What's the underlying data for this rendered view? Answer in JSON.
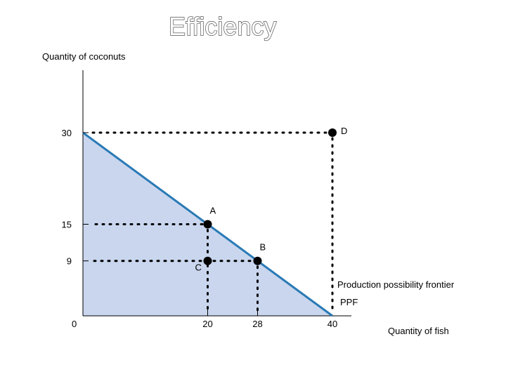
{
  "chart_data": {
    "type": "line",
    "title": "Efficiency",
    "xlabel": "Quantity of fish",
    "ylabel": "Quantity of coconuts",
    "xlim": [
      0,
      40
    ],
    "ylim": [
      0,
      30
    ],
    "grid": false,
    "x_ticks": [
      {
        "value": 0,
        "label": "0"
      },
      {
        "value": 20,
        "label": "20"
      },
      {
        "value": 28,
        "label": "28"
      },
      {
        "value": 40,
        "label": "40"
      }
    ],
    "y_ticks": [
      {
        "value": 9,
        "label": "9"
      },
      {
        "value": 15,
        "label": "15"
      },
      {
        "value": 30,
        "label": "30"
      }
    ],
    "ppf": {
      "x": [
        0,
        40
      ],
      "y": [
        30,
        0
      ],
      "color": "#2a7ab5",
      "fill": "#c9d6ee"
    },
    "points": [
      {
        "label": "A",
        "x": 20,
        "y": 15
      },
      {
        "label": "B",
        "x": 28,
        "y": 9
      },
      {
        "label": "C",
        "x": 20,
        "y": 9
      },
      {
        "label": "D",
        "x": 40,
        "y": 30
      }
    ],
    "annotations": [
      "Production possibility frontier",
      "PPF"
    ]
  }
}
